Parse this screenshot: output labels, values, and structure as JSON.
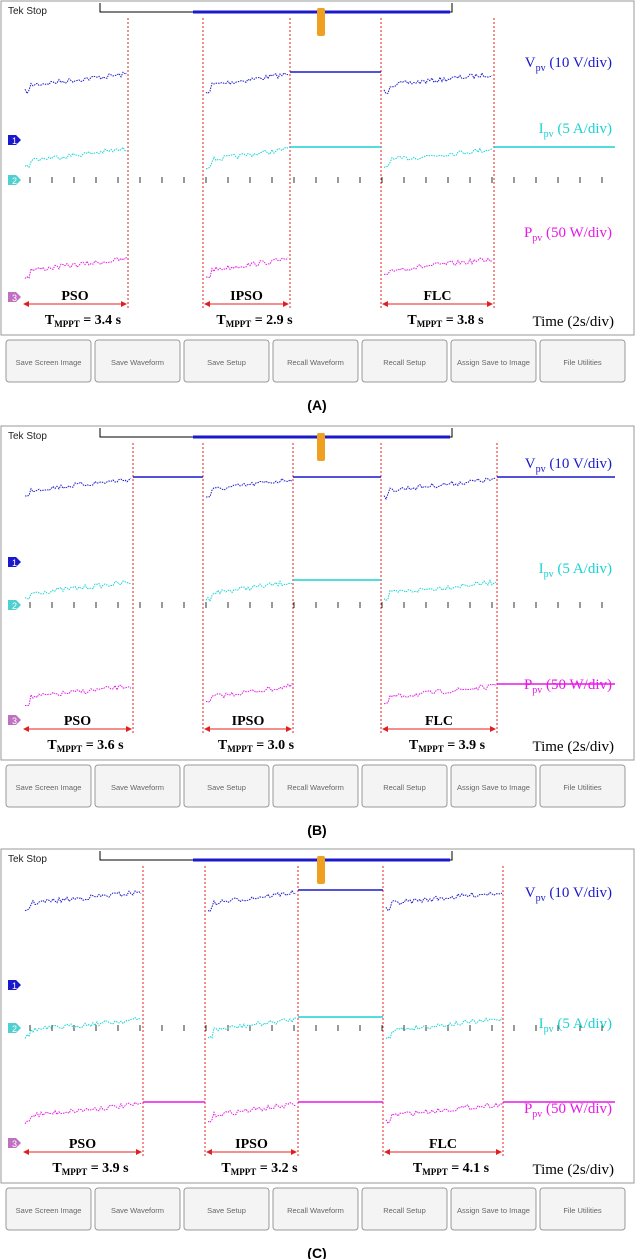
{
  "panels": [
    {
      "label": "(A)",
      "header": "Tek Stop",
      "channels": [
        {
          "name": "V",
          "sub": "pv",
          "scale": " (10 V/div)"
        },
        {
          "name": "I",
          "sub": "pv",
          "scale": " (5 A/div)"
        },
        {
          "name": "P",
          "sub": "pv",
          "scale": " (50 W/div)"
        }
      ],
      "markers": [
        "1",
        "2",
        "3"
      ],
      "methods": [
        {
          "name": "PSO",
          "t": "T",
          "t_sub": "MPPT",
          "t_value": " = 3.4 s"
        },
        {
          "name": "IPSO",
          "t": "T",
          "t_sub": "MPPT",
          "t_value": " = 2.9 s"
        },
        {
          "name": "FLC",
          "t": "T",
          "t_sub": "MPPT",
          "t_value": " = 3.8 s"
        }
      ],
      "time": "Time (2s/div)",
      "buttons": [
        "Save Screen Image",
        "Save Waveform",
        "Save Setup",
        "Recall Waveform",
        "Recall Setup",
        "Assign Save to Image",
        "File Utilities"
      ]
    },
    {
      "label": "(B)",
      "header": "Tek Stop",
      "channels": [
        {
          "name": "V",
          "sub": "pv",
          "scale": " (10 V/div)"
        },
        {
          "name": "I",
          "sub": "pv",
          "scale": " (5 A/div)"
        },
        {
          "name": "P",
          "sub": "pv",
          "scale": " (50 W/div)"
        }
      ],
      "markers": [
        "1",
        "2",
        "3"
      ],
      "methods": [
        {
          "name": "PSO",
          "t": "T",
          "t_sub": "MPPT",
          "t_value": " = 3.6 s"
        },
        {
          "name": "IPSO",
          "t": "T",
          "t_sub": "MPPT",
          "t_value": " = 3.0 s"
        },
        {
          "name": "FLC",
          "t": "T",
          "t_sub": "MPPT",
          "t_value": " = 3.9 s"
        }
      ],
      "time": "Time (2s/div)",
      "buttons": [
        "Save Screen Image",
        "Save Waveform",
        "Save Setup",
        "Recall Waveform",
        "Recall Setup",
        "Assign Save to Image",
        "File Utilities"
      ]
    },
    {
      "label": "(C)",
      "header": "Tek Stop",
      "channels": [
        {
          "name": "V",
          "sub": "pv",
          "scale": " (10 V/div)"
        },
        {
          "name": "I",
          "sub": "pv",
          "scale": " (5 A/div)"
        },
        {
          "name": "P",
          "sub": "pv",
          "scale": " (50 W/div)"
        }
      ],
      "markers": [
        "1",
        "2",
        "3"
      ],
      "methods": [
        {
          "name": "PSO",
          "t": "T",
          "t_sub": "MPPT",
          "t_value": " = 3.9 s"
        },
        {
          "name": "IPSO",
          "t": "T",
          "t_sub": "MPPT",
          "t_value": " = 3.2 s"
        },
        {
          "name": "FLC",
          "t": "T",
          "t_sub": "MPPT",
          "t_value": " = 4.1 s"
        }
      ],
      "time": "Time (2s/div)",
      "buttons": [
        "Save Screen Image",
        "Save Waveform",
        "Save Setup",
        "Recall Waveform",
        "Recall Setup",
        "Assign Save to Image",
        "File Utilities"
      ]
    }
  ]
}
